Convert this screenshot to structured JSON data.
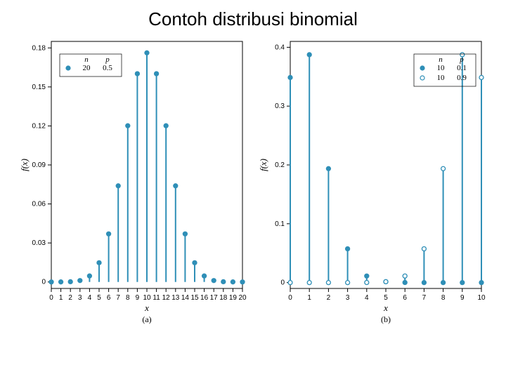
{
  "title": "Contoh distribusi binomial",
  "chart_color": "#2f8fb7",
  "axis_color": "#000000",
  "background_color": "#ffffff",
  "chart_a": {
    "type": "stem",
    "x": [
      0,
      1,
      2,
      3,
      4,
      5,
      6,
      7,
      8,
      9,
      10,
      11,
      12,
      13,
      14,
      15,
      16,
      17,
      18,
      19,
      20
    ],
    "values": [
      1e-06,
      1.9e-05,
      0.000181,
      0.001087,
      0.004621,
      0.014786,
      0.036964,
      0.073929,
      0.120134,
      0.160179,
      0.176197,
      0.160179,
      0.120134,
      0.073929,
      0.036964,
      0.014786,
      0.004621,
      0.001087,
      0.000181,
      1.9e-05,
      1e-06
    ],
    "yticks": [
      0,
      0.03,
      0.06,
      0.09,
      0.12,
      0.15,
      0.18
    ],
    "ytick_labels": [
      "0",
      "0.03",
      "0.06",
      "0.09",
      "0.12",
      "0.15",
      "0.18"
    ],
    "xlabel": "x",
    "ylabel": "f(x)",
    "sublabel": "(a)",
    "ylim": [
      -0.005,
      0.185
    ],
    "legend": {
      "headers": [
        "n",
        "p"
      ],
      "rows": [
        [
          "●",
          "20",
          "0.5"
        ]
      ]
    },
    "marker": "filled",
    "line_width": 2,
    "marker_size": 3
  },
  "chart_b": {
    "type": "stem",
    "x": [
      0,
      1,
      2,
      3,
      4,
      5,
      6,
      7,
      8,
      9,
      10
    ],
    "series1": {
      "values": [
        0.348678,
        0.38742,
        0.19371,
        0.057396,
        0.01116,
        0.001488,
        0.000138,
        9e-06,
        4e-07,
        9e-09,
        1e-10
      ],
      "marker": "filled"
    },
    "series2": {
      "values": [
        1e-10,
        9e-09,
        4e-07,
        9e-06,
        0.000138,
        0.001488,
        0.01116,
        0.057396,
        0.19371,
        0.38742,
        0.348678
      ],
      "marker": "open"
    },
    "yticks": [
      0,
      0.1,
      0.2,
      0.3,
      0.4
    ],
    "ytick_labels": [
      "0",
      "0.1",
      "0.2",
      "0.3",
      "0.4"
    ],
    "xlabel": "x",
    "ylabel": "f(x)",
    "sublabel": "(b)",
    "ylim": [
      -0.01,
      0.41
    ],
    "legend": {
      "headers": [
        "n",
        "p"
      ],
      "rows": [
        [
          "●",
          "10",
          "0.1"
        ],
        [
          "○",
          "10",
          "0.9"
        ]
      ]
    },
    "line_width": 2,
    "marker_size": 3
  }
}
